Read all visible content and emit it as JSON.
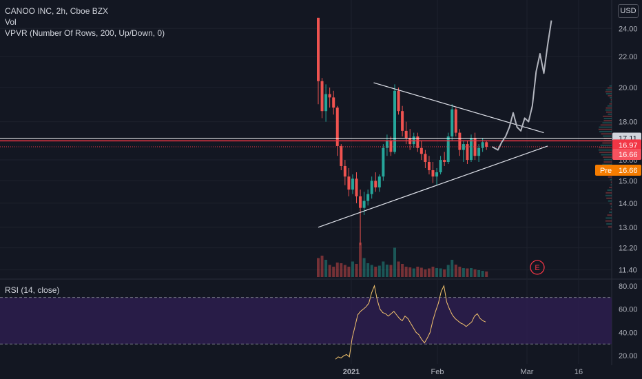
{
  "header": {
    "title": "CANOO INC, 2h, Cboe BZX",
    "vol": "Vol",
    "vpvr": "VPVR (Number Of Rows, 200, Up/Down, 0)",
    "currency": "USD"
  },
  "rsi_panel": {
    "title": "RSI (14, close)"
  },
  "colors": {
    "background": "#131722",
    "up": "#26a69a",
    "down": "#ef5350",
    "rsi_line": "#f5c56e",
    "rsi_band": "#2d1d4d",
    "trendline": "#e0e3eb",
    "projection": "#b2b5be",
    "price_line": "#f23645",
    "pre_label": "#f57c00"
  },
  "chart_data": [
    {
      "type": "candlestick",
      "title": "CANOO INC, 2h, Cboe BZX",
      "x_tick_labels": [
        "2021",
        "Feb",
        "Mar",
        "16"
      ],
      "y_tick_labels": [
        "24.00",
        "22.00",
        "20.00",
        "18.00",
        "16.00",
        "15.00",
        "14.00",
        "13.00",
        "12.20",
        "11.40"
      ],
      "y_scale": "log",
      "ylim": [
        11.15,
        26.2
      ],
      "ohlc": [
        [
          24.8,
          24.8,
          19.0,
          20.4
        ],
        [
          20.4,
          20.6,
          18.2,
          18.6
        ],
        [
          18.6,
          20.2,
          18.0,
          19.6
        ],
        [
          19.6,
          20.0,
          18.8,
          19.4
        ],
        [
          19.4,
          19.8,
          18.4,
          18.8
        ],
        [
          18.8,
          18.9,
          16.2,
          16.7
        ],
        [
          16.7,
          16.8,
          15.5,
          15.7
        ],
        [
          15.7,
          16.0,
          14.8,
          15.2
        ],
        [
          15.2,
          15.6,
          14.3,
          14.6
        ],
        [
          14.6,
          15.3,
          14.4,
          15.1
        ],
        [
          15.1,
          15.4,
          14.0,
          14.3
        ],
        [
          14.3,
          14.6,
          12.3,
          13.8
        ],
        [
          13.8,
          14.5,
          13.5,
          14.1
        ],
        [
          14.1,
          14.6,
          13.9,
          14.4
        ],
        [
          14.4,
          15.2,
          14.2,
          15.0
        ],
        [
          15.0,
          15.4,
          14.5,
          14.7
        ],
        [
          14.7,
          15.3,
          14.5,
          15.2
        ],
        [
          15.2,
          16.8,
          15.0,
          16.6
        ],
        [
          16.6,
          17.3,
          16.2,
          17.0
        ],
        [
          17.0,
          17.2,
          16.2,
          16.4
        ],
        [
          16.4,
          20.2,
          16.3,
          19.8
        ],
        [
          19.8,
          20.0,
          18.4,
          18.6
        ],
        [
          18.6,
          18.9,
          17.2,
          17.5
        ],
        [
          17.5,
          18.0,
          16.8,
          17.1
        ],
        [
          17.1,
          17.6,
          16.5,
          16.8
        ],
        [
          16.8,
          17.4,
          16.6,
          17.2
        ],
        [
          17.2,
          17.4,
          16.4,
          16.6
        ],
        [
          16.6,
          17.0,
          16.0,
          16.3
        ],
        [
          16.3,
          16.5,
          15.6,
          15.9
        ],
        [
          15.9,
          16.2,
          15.3,
          15.5
        ],
        [
          15.5,
          15.9,
          14.9,
          15.2
        ],
        [
          15.2,
          15.6,
          14.8,
          15.4
        ],
        [
          15.4,
          16.2,
          15.3,
          16.0
        ],
        [
          16.0,
          16.4,
          15.7,
          15.9
        ],
        [
          15.9,
          17.4,
          15.8,
          17.2
        ],
        [
          17.2,
          19.0,
          17.0,
          18.7
        ],
        [
          18.7,
          18.8,
          17.2,
          17.4
        ],
        [
          17.4,
          17.6,
          16.2,
          16.5
        ],
        [
          16.5,
          17.0,
          15.9,
          16.8
        ],
        [
          16.8,
          17.0,
          15.8,
          16.0
        ],
        [
          16.0,
          17.3,
          15.9,
          17.1
        ],
        [
          17.1,
          17.4,
          16.0,
          16.2
        ],
        [
          16.2,
          16.8,
          15.9,
          16.6
        ],
        [
          16.6,
          17.1,
          16.4,
          16.9
        ],
        [
          16.9,
          17.0,
          16.5,
          16.66
        ]
      ],
      "volume_tick_labels": [],
      "volume": [
        0.55,
        0.62,
        0.5,
        0.35,
        0.3,
        0.42,
        0.4,
        0.35,
        0.3,
        0.45,
        0.38,
        1.0,
        0.55,
        0.4,
        0.35,
        0.3,
        0.33,
        0.45,
        0.36,
        0.35,
        0.85,
        0.45,
        0.38,
        0.3,
        0.28,
        0.25,
        0.3,
        0.27,
        0.22,
        0.25,
        0.3,
        0.26,
        0.25,
        0.22,
        0.35,
        0.5,
        0.36,
        0.3,
        0.26,
        0.25,
        0.26,
        0.22,
        0.2,
        0.18,
        0.16
      ],
      "price_lines": [
        17.11,
        16.97,
        16.66
      ],
      "price_labels": [
        {
          "text": "17.11",
          "value": 17.11,
          "bg": "#d1d4dc",
          "fg": "#131722"
        },
        {
          "text": "16.97",
          "value": 16.97,
          "bg": "#f23645",
          "fg": "#ffffff"
        },
        {
          "text": "16.66",
          "value": 16.66,
          "bg": "#f7525f",
          "fg": "#ffffff"
        }
      ],
      "pre_label": {
        "tag": "Pre",
        "text": "16.66",
        "value": 16.66
      },
      "trendlines": [
        {
          "from": [
            0,
            13.0
          ],
          "to": [
            60,
            16.7
          ]
        },
        {
          "from": [
            14.5,
            20.3
          ],
          "to": [
            59,
            17.4
          ]
        }
      ],
      "projection_path": [
        [
          45.5,
          16.66
        ],
        [
          47,
          16.5
        ],
        [
          48,
          16.9
        ],
        [
          49,
          17.2
        ],
        [
          50,
          17.7
        ],
        [
          51,
          18.5
        ],
        [
          52,
          17.7
        ],
        [
          53,
          17.5
        ],
        [
          54,
          18.2
        ],
        [
          55,
          18.0
        ],
        [
          56,
          18.9
        ],
        [
          57,
          21.0
        ],
        [
          58,
          22.2
        ],
        [
          59,
          20.9
        ],
        [
          60,
          22.8
        ],
        [
          61,
          24.6
        ]
      ],
      "earnings_marker": "E"
    },
    {
      "type": "line",
      "title": "RSI (14, close)",
      "y_tick_labels": [
        "80.00",
        "60.00",
        "40.00",
        "20.00"
      ],
      "ylim": [
        13,
        84
      ],
      "bands": [
        70,
        30
      ],
      "values": [
        17,
        19,
        18,
        20,
        21,
        19,
        35,
        45,
        55,
        58,
        60,
        62,
        65,
        74,
        80,
        68,
        60,
        57,
        56,
        54,
        56,
        58,
        55,
        52,
        50,
        54,
        52,
        48,
        44,
        40,
        38,
        34,
        31,
        35,
        40,
        50,
        58,
        65,
        75,
        80,
        66,
        60,
        55,
        52,
        50,
        48,
        47,
        45,
        47,
        49,
        54,
        56,
        52,
        50,
        49
      ]
    }
  ]
}
